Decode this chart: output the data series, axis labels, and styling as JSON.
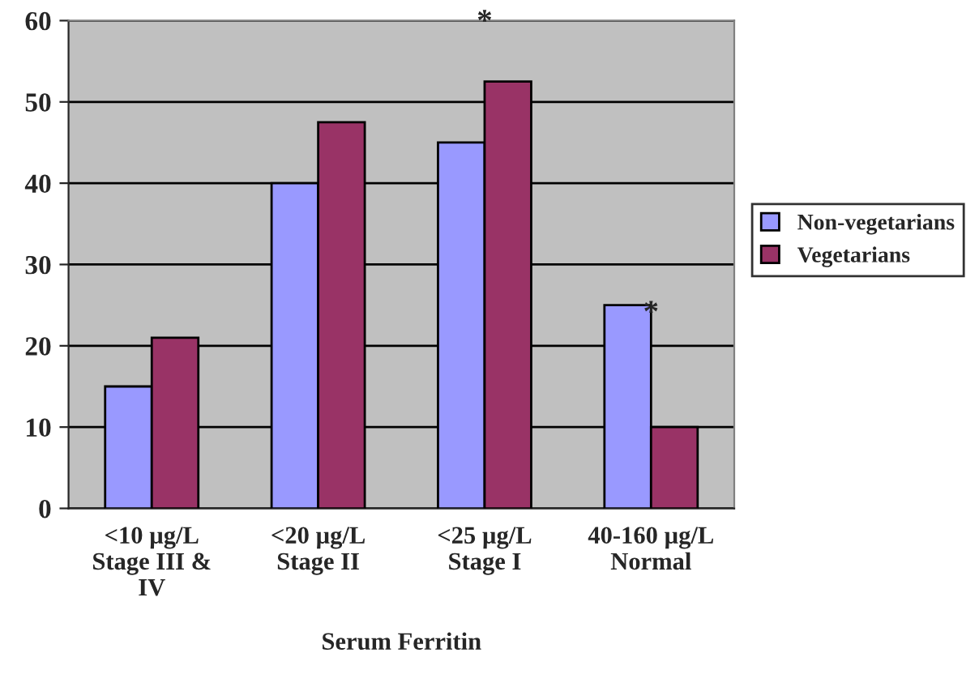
{
  "chart_data": {
    "type": "bar",
    "xlabel": "Serum Ferritin",
    "categories": [
      "<10 µg/L\nStage III &\nIV",
      "<20 µg/L\nStage II",
      "<25 µg/L\nStage I",
      "40-160 µg/L\nNormal"
    ],
    "series": [
      {
        "name": "Non-vegetarians",
        "color": "#9999ff",
        "values": [
          15,
          40,
          45,
          25
        ]
      },
      {
        "name": "Vegetarians",
        "color": "#993366",
        "values": [
          21,
          47.5,
          52.5,
          10
        ]
      }
    ],
    "ylim": [
      0,
      60
    ],
    "yticks": [
      0,
      10,
      20,
      30,
      40,
      50,
      60
    ],
    "grid": "y",
    "legend": "right",
    "annotations": [
      {
        "text": "*",
        "x": "<25 µg/L\nStage I",
        "y": 52.5
      },
      {
        "text": "*",
        "x": "40-160 µg/L\nNormal",
        "y": 25
      }
    ]
  }
}
